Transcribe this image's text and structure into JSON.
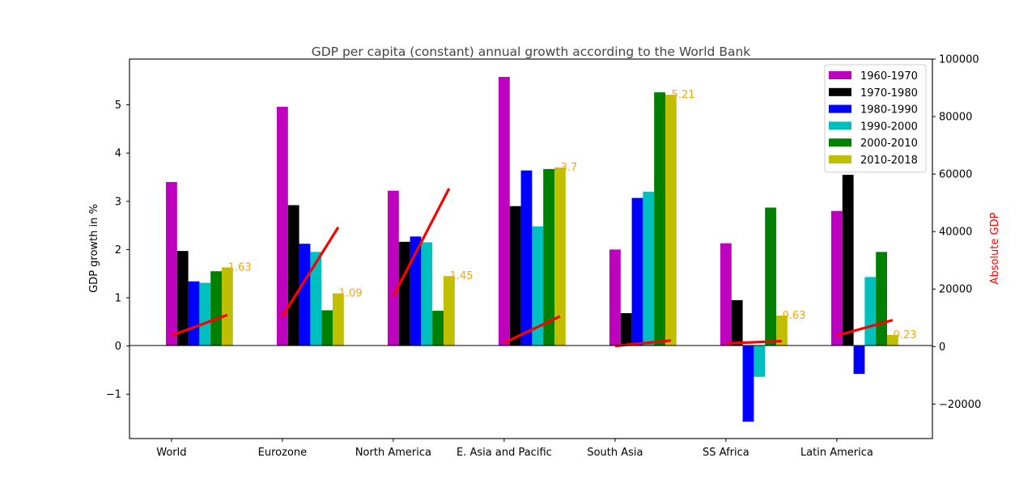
{
  "chart_data": {
    "type": "bar",
    "title": "GDP per capita (constant) annual growth according to the World Bank",
    "ylabel": "GDP growth in %",
    "y2label": "Absolute GDP",
    "ylim": [
      -1.92,
      5.95
    ],
    "y2lim": [
      -32000,
      100000
    ],
    "yticks": [
      -1,
      0,
      1,
      2,
      3,
      4,
      5
    ],
    "yticks_labels": [
      "−1",
      "0",
      "1",
      "2",
      "3",
      "4",
      "5"
    ],
    "y2ticks": [
      -20000,
      0,
      20000,
      40000,
      60000,
      80000,
      100000
    ],
    "y2ticks_labels": [
      "−20000",
      "0",
      "20000",
      "40000",
      "60000",
      "80000",
      "100000"
    ],
    "categories": [
      "World",
      "Eurozone",
      "North America",
      "E. Asia and Pacific",
      "South Asia",
      "SS Africa",
      "Latin America"
    ],
    "series": [
      {
        "name": "1960-1970",
        "color": "#bf00bf",
        "values": [
          3.4,
          4.96,
          3.22,
          5.58,
          2.0,
          2.13,
          2.8
        ]
      },
      {
        "name": "1970-1980",
        "color": "#000000",
        "values": [
          1.97,
          2.92,
          2.16,
          2.9,
          0.68,
          0.95,
          3.55
        ]
      },
      {
        "name": "1980-1990",
        "color": "#0000ff",
        "values": [
          1.34,
          2.12,
          2.27,
          3.64,
          3.07,
          -1.57,
          -0.58
        ]
      },
      {
        "name": "1990-2000",
        "color": "#00bfbf",
        "values": [
          1.31,
          1.95,
          2.15,
          2.48,
          3.2,
          -0.64,
          1.43
        ]
      },
      {
        "name": "2000-2010",
        "color": "#008000",
        "values": [
          1.55,
          0.74,
          0.73,
          3.67,
          5.26,
          2.87,
          1.95
        ]
      },
      {
        "name": "2010-2018",
        "color": "#bfbf00",
        "values": [
          1.63,
          1.09,
          1.45,
          3.7,
          5.21,
          0.63,
          0.23
        ]
      }
    ],
    "value_labels": [
      "1.63",
      "1.09",
      "1.45",
      "3.7",
      "5.21",
      "0.63",
      "0.23"
    ],
    "value_label_color": "#ffa500",
    "absolute_gdp": {
      "color": "#ff0000",
      "start": [
        3800,
        10500,
        17500,
        1300,
        200,
        1100,
        3800
      ],
      "end": [
        11000,
        41500,
        55000,
        10500,
        2100,
        1900,
        9200
      ]
    },
    "legend_position": "top-right",
    "grid": false
  }
}
